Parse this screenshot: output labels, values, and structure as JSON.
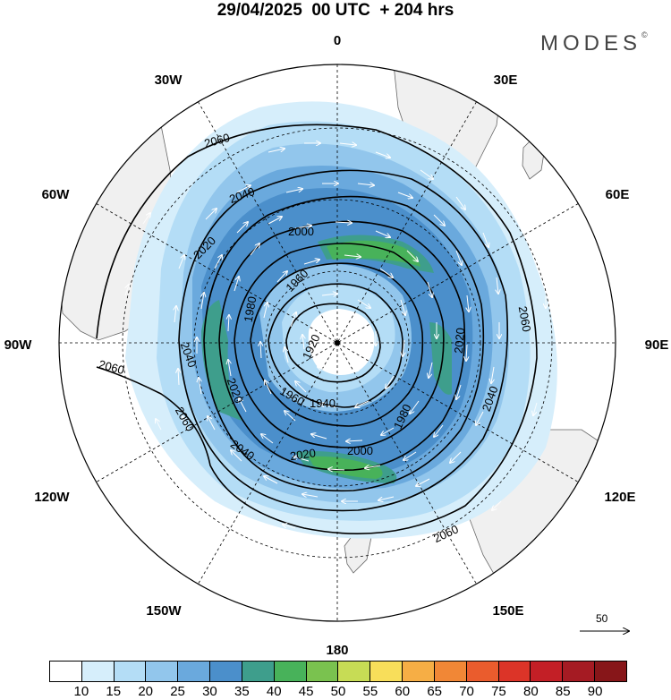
{
  "header": {
    "title": "29/04/2025  00 UTC  + 204 hrs",
    "logo_text": "MODES",
    "logo_mark": "©"
  },
  "map": {
    "projection": "polar-stereographic-south",
    "longitude_labels": {
      "top": "0",
      "top_right": "30E",
      "right_upper": "60E",
      "right": "90E",
      "right_lower": "120E",
      "bottom_right": "150E",
      "bottom": "180",
      "bottom_left": "150W",
      "left_lower": "120W",
      "left": "90W",
      "left_upper": "60W",
      "top_left": "30W"
    },
    "contour_labels": [
      "2060",
      "2040",
      "2020",
      "2000",
      "1960",
      "1980",
      "1920",
      "1940",
      "1960",
      "1980",
      "2020",
      "2060",
      "2040",
      "2020",
      "2000",
      "2060",
      "2040",
      "2060",
      "2020",
      "2040",
      "2060"
    ],
    "land_color": "#f2f2f2",
    "coast_color": "#555555"
  },
  "reference_vector": {
    "label": "50"
  },
  "colorbar": {
    "labels": [
      "10",
      "15",
      "20",
      "25",
      "30",
      "35",
      "40",
      "45",
      "50",
      "55",
      "60",
      "65",
      "70",
      "75",
      "80",
      "85",
      "90"
    ],
    "colors": [
      "#ffffff",
      "#d6eefb",
      "#b4ddf6",
      "#92c6ec",
      "#6aa9dd",
      "#4b8fcb",
      "#3e9e8c",
      "#48b25a",
      "#7ac24f",
      "#c7dc55",
      "#f8de5a",
      "#f6ae45",
      "#f18736",
      "#ea5c2d",
      "#dc3428",
      "#c31f26",
      "#a51b23",
      "#871619"
    ]
  }
}
